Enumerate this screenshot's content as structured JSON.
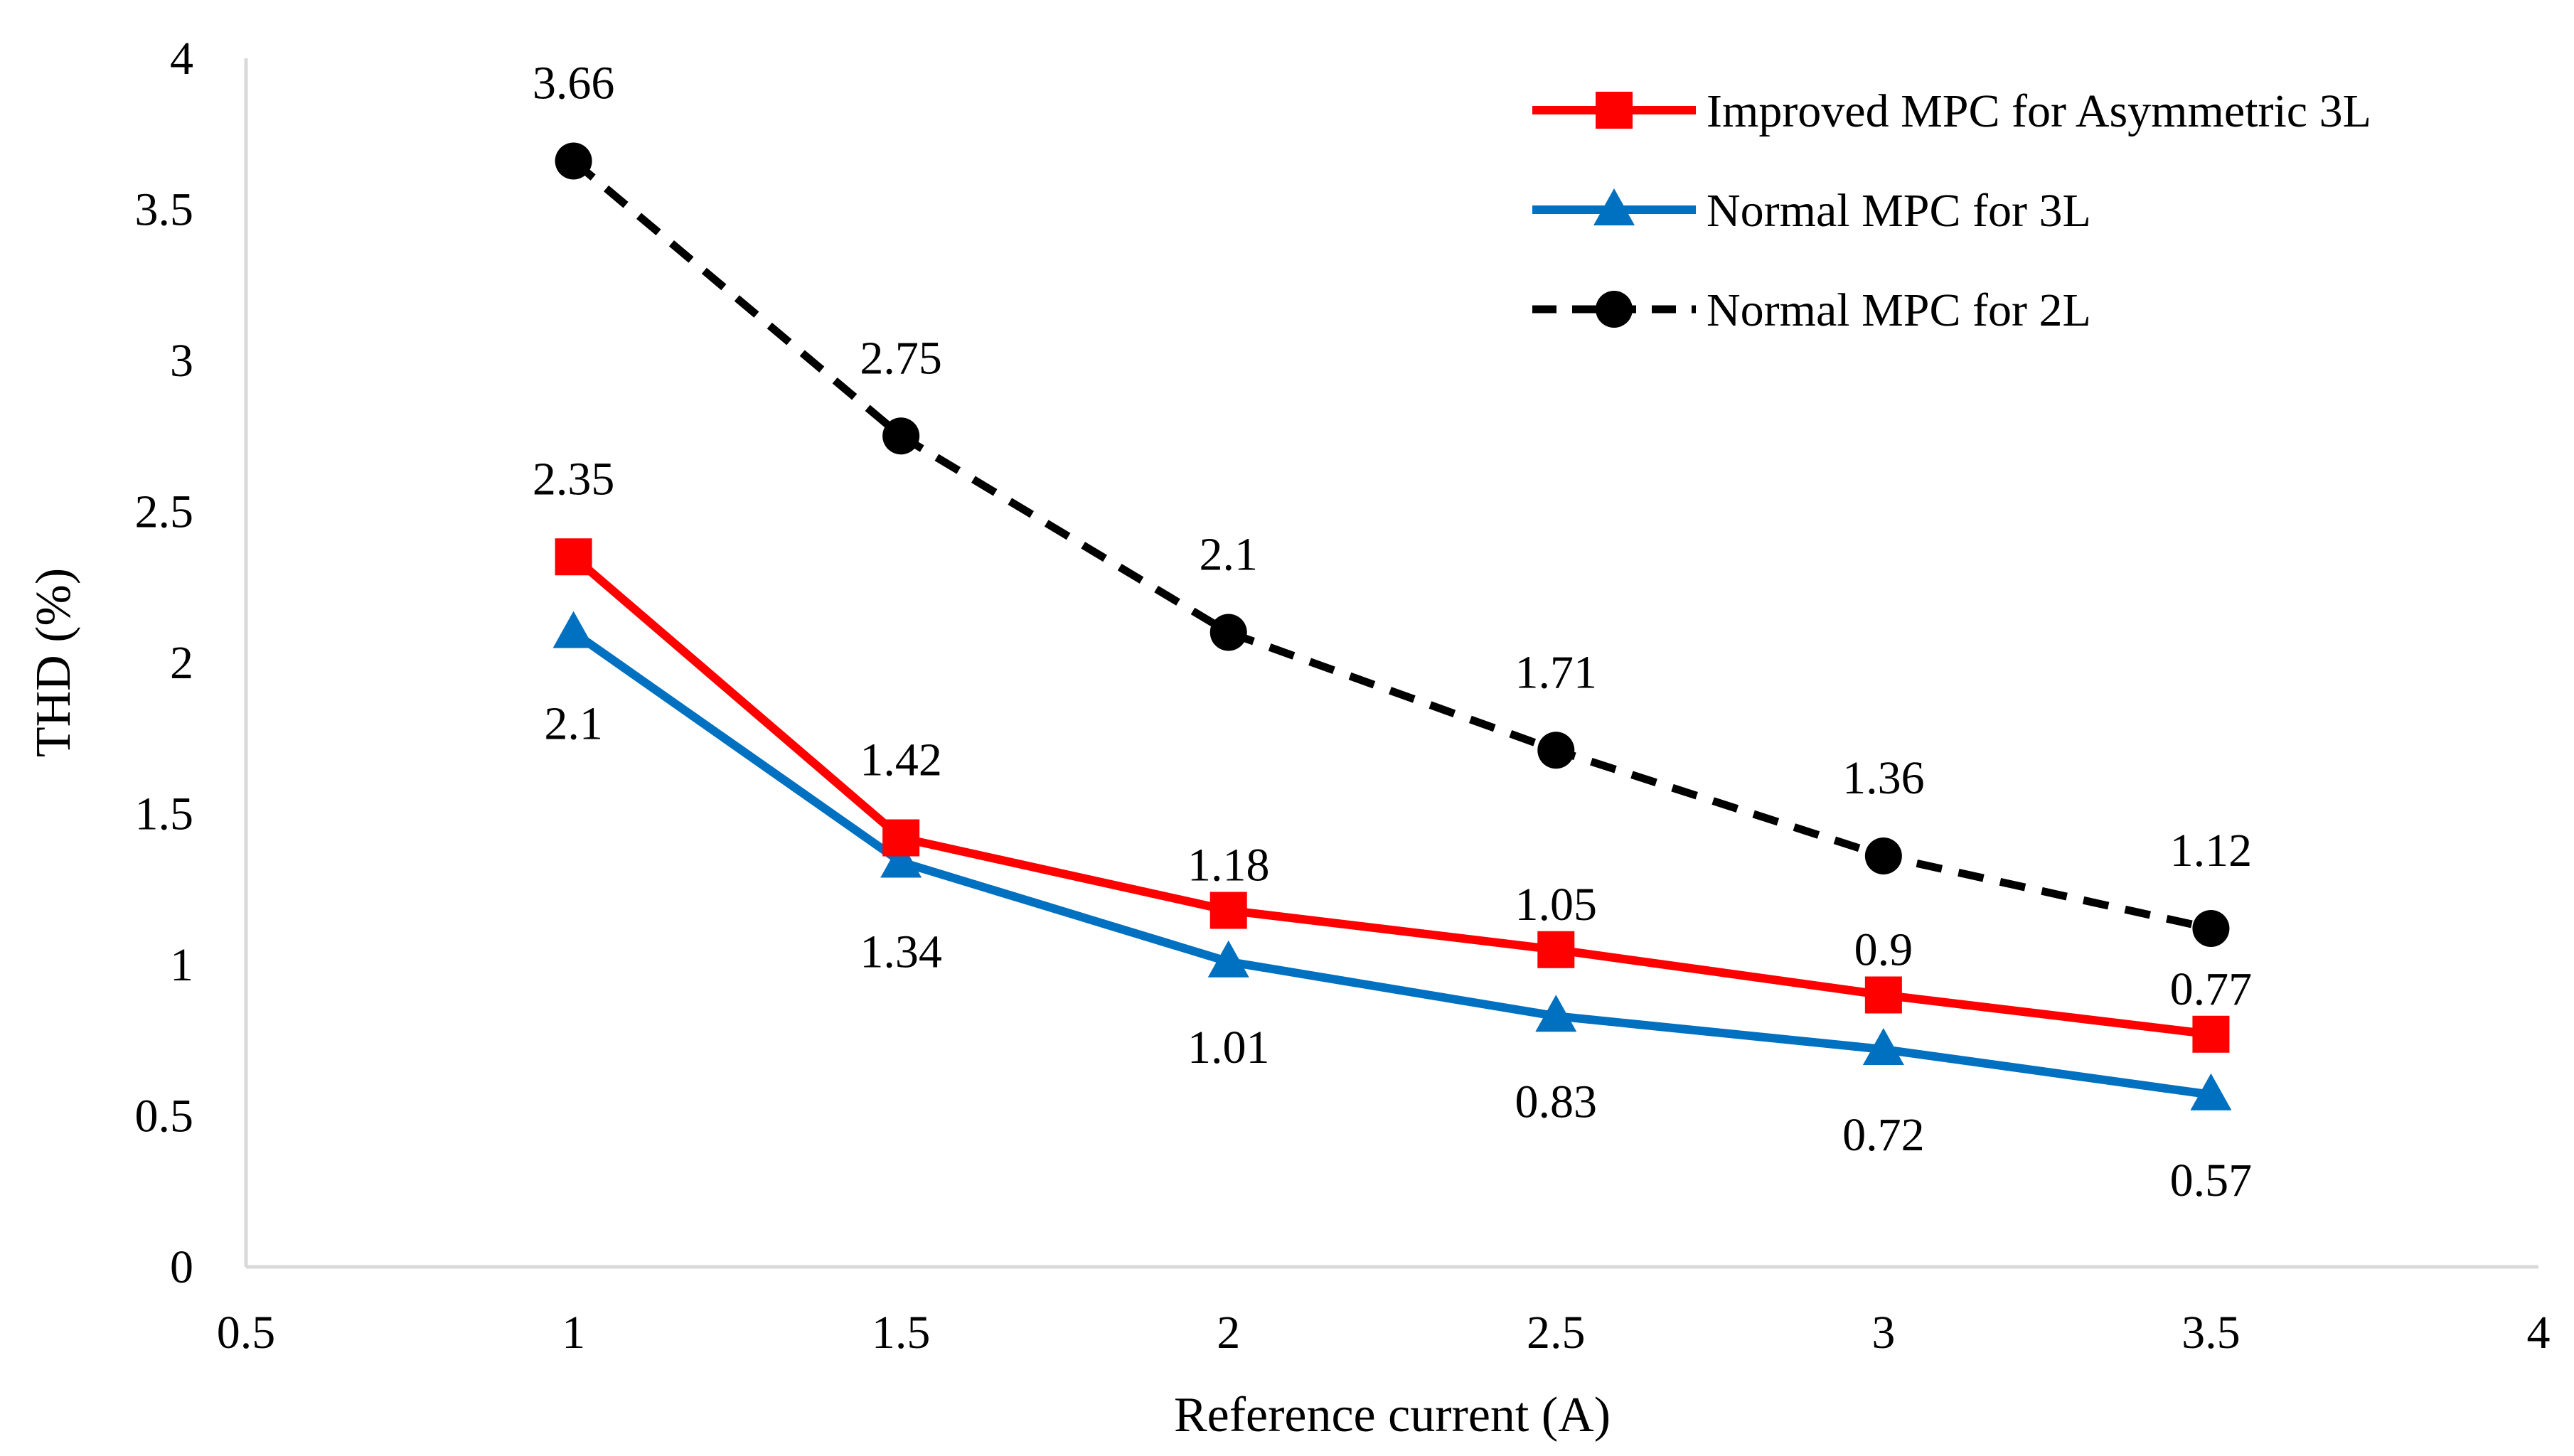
{
  "chart_data": {
    "type": "line",
    "title": "",
    "xlabel": "Reference current (A)",
    "ylabel": "THD (%)",
    "xlim": [
      0.5,
      4
    ],
    "ylim": [
      0,
      4
    ],
    "x_ticks": [
      "0.5",
      "1",
      "1.5",
      "2",
      "2.5",
      "3",
      "3.5",
      "4"
    ],
    "y_ticks": [
      "0",
      "0.5",
      "1",
      "1.5",
      "2",
      "2.5",
      "3",
      "3.5",
      "4"
    ],
    "grid": false,
    "legend_position": "top-right",
    "x": [
      1,
      1.5,
      2,
      2.5,
      3,
      3.5
    ],
    "series": [
      {
        "name": "Improved MPC for Asymmetric 3L",
        "color": "#ff0000",
        "marker": "square",
        "line_style": "solid",
        "values": [
          2.35,
          1.42,
          1.18,
          1.05,
          0.9,
          0.77
        ],
        "labels": [
          "2.35",
          "1.42",
          "1.18",
          "1.05",
          "0.9",
          "0.77"
        ]
      },
      {
        "name": "Normal MPC for 3L",
        "color": "#0070c0",
        "marker": "triangle",
        "line_style": "solid",
        "values": [
          2.1,
          1.34,
          1.01,
          0.83,
          0.72,
          0.57
        ],
        "labels": [
          "2.1",
          "1.34",
          "1.01",
          "0.83",
          "0.72",
          "0.57"
        ]
      },
      {
        "name": "Normal MPC for 2L",
        "color": "#000000",
        "marker": "circle",
        "line_style": "dashed",
        "values": [
          3.66,
          2.75,
          2.1,
          1.71,
          1.36,
          1.12
        ],
        "labels": [
          "3.66",
          "2.75",
          "2.1",
          "1.71",
          "1.36",
          "1.12"
        ]
      }
    ]
  }
}
